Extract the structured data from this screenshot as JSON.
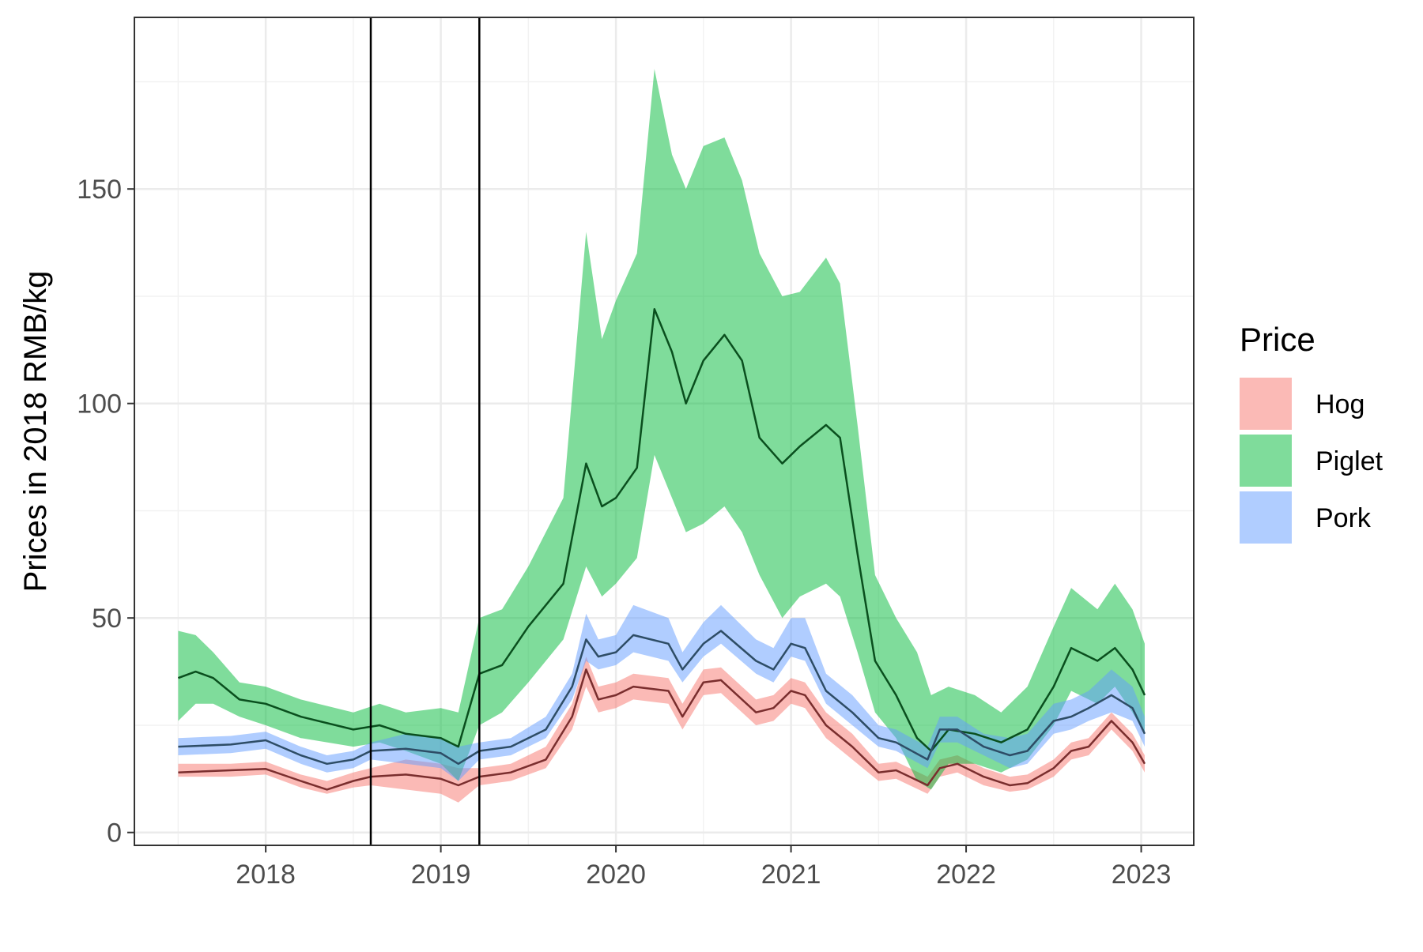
{
  "chart_data": {
    "type": "area",
    "title": "",
    "xlabel": "",
    "ylabel": "Prices in 2018 RMB/kg",
    "xlim": [
      2017.25,
      2023.3
    ],
    "ylim": [
      -3,
      190
    ],
    "x_ticks": [
      2018,
      2019,
      2020,
      2021,
      2022,
      2023
    ],
    "x_tick_labels": [
      "2018",
      "2019",
      "2020",
      "2021",
      "2022",
      "2023"
    ],
    "y_ticks": [
      0,
      50,
      100,
      150
    ],
    "y_tick_labels": [
      "0",
      "50",
      "100",
      "150"
    ],
    "grid": true,
    "legend": {
      "title": "Price",
      "position": "right"
    },
    "vertical_lines": [
      2018.6,
      2019.22
    ],
    "series": [
      {
        "name": "Hog",
        "fill_color": "#f8766d",
        "line_color": "#7a2e2e",
        "points": [
          [
            2017.5,
            14,
            13,
            16
          ],
          [
            2017.8,
            14.5,
            13,
            16
          ],
          [
            2018.0,
            14.8,
            13.5,
            16.5
          ],
          [
            2018.2,
            12,
            10.5,
            13.5
          ],
          [
            2018.35,
            10,
            9,
            12
          ],
          [
            2018.5,
            12,
            10.5,
            14
          ],
          [
            2018.6,
            13,
            11,
            15
          ],
          [
            2018.8,
            13.5,
            10,
            17
          ],
          [
            2019.0,
            12.5,
            9,
            16
          ],
          [
            2019.1,
            11,
            7,
            15
          ],
          [
            2019.22,
            13,
            11,
            15
          ],
          [
            2019.4,
            14,
            12,
            16
          ],
          [
            2019.6,
            17,
            15,
            20
          ],
          [
            2019.75,
            27,
            24,
            30
          ],
          [
            2019.83,
            38,
            34,
            41
          ],
          [
            2019.9,
            31,
            28,
            34
          ],
          [
            2020.0,
            32,
            29,
            35
          ],
          [
            2020.1,
            34,
            31,
            37
          ],
          [
            2020.3,
            33,
            30,
            36
          ],
          [
            2020.38,
            27,
            24,
            30
          ],
          [
            2020.5,
            35,
            32,
            38
          ],
          [
            2020.6,
            35.5,
            32.5,
            38.5
          ],
          [
            2020.8,
            28,
            25,
            31
          ],
          [
            2020.9,
            29,
            26,
            32
          ],
          [
            2021.0,
            33,
            30,
            36
          ],
          [
            2021.08,
            32,
            29,
            35
          ],
          [
            2021.2,
            25,
            22,
            28
          ],
          [
            2021.35,
            20,
            17,
            23
          ],
          [
            2021.5,
            14,
            12,
            16
          ],
          [
            2021.6,
            14.5,
            12.5,
            16.5
          ],
          [
            2021.78,
            11,
            9,
            13
          ],
          [
            2021.85,
            15,
            13,
            17
          ],
          [
            2021.95,
            16,
            14,
            18
          ],
          [
            2022.1,
            13,
            11,
            15
          ],
          [
            2022.25,
            11,
            9.5,
            13
          ],
          [
            2022.35,
            11.5,
            10,
            13.5
          ],
          [
            2022.5,
            15,
            13,
            17
          ],
          [
            2022.6,
            19,
            17,
            21
          ],
          [
            2022.7,
            20,
            18,
            22
          ],
          [
            2022.83,
            26,
            24,
            28
          ],
          [
            2022.95,
            21,
            19,
            23
          ],
          [
            2023.02,
            16,
            14,
            18
          ]
        ]
      },
      {
        "name": "Piglet",
        "fill_color": "#00ba38",
        "line_color": "#0a4f1e",
        "points": [
          [
            2017.5,
            36,
            26,
            47
          ],
          [
            2017.6,
            37.5,
            30,
            46
          ],
          [
            2017.7,
            36,
            30,
            42
          ],
          [
            2017.85,
            31,
            27,
            35
          ],
          [
            2018.0,
            30,
            25,
            34
          ],
          [
            2018.2,
            27,
            22,
            31
          ],
          [
            2018.5,
            24,
            20,
            28
          ],
          [
            2018.65,
            25,
            21,
            30
          ],
          [
            2018.8,
            23,
            19,
            28
          ],
          [
            2019.0,
            22,
            16,
            29
          ],
          [
            2019.1,
            20,
            12,
            28
          ],
          [
            2019.22,
            37,
            25,
            50
          ],
          [
            2019.35,
            39,
            28,
            52
          ],
          [
            2019.5,
            48,
            35,
            62
          ],
          [
            2019.7,
            58,
            45,
            78
          ],
          [
            2019.83,
            86,
            62,
            140
          ],
          [
            2019.92,
            76,
            55,
            115
          ],
          [
            2020.0,
            78,
            58,
            124
          ],
          [
            2020.12,
            85,
            64,
            135
          ],
          [
            2020.22,
            122,
            88,
            178
          ],
          [
            2020.32,
            112,
            78,
            158
          ],
          [
            2020.4,
            100,
            70,
            150
          ],
          [
            2020.5,
            110,
            72,
            160
          ],
          [
            2020.62,
            116,
            76,
            162
          ],
          [
            2020.72,
            110,
            70,
            152
          ],
          [
            2020.82,
            92,
            60,
            135
          ],
          [
            2020.95,
            86,
            50,
            125
          ],
          [
            2021.05,
            90,
            55,
            126
          ],
          [
            2021.2,
            95,
            58,
            134
          ],
          [
            2021.28,
            92,
            55,
            128
          ],
          [
            2021.38,
            65,
            42,
            95
          ],
          [
            2021.48,
            40,
            28,
            60
          ],
          [
            2021.6,
            32,
            22,
            50
          ],
          [
            2021.72,
            22,
            12,
            42
          ],
          [
            2021.8,
            19,
            10,
            32
          ],
          [
            2021.9,
            24,
            16,
            34
          ],
          [
            2022.05,
            23,
            16,
            32
          ],
          [
            2022.2,
            21,
            14,
            28
          ],
          [
            2022.35,
            24,
            17,
            34
          ],
          [
            2022.5,
            34,
            25,
            48
          ],
          [
            2022.6,
            43,
            33,
            57
          ],
          [
            2022.75,
            40,
            30,
            52
          ],
          [
            2022.85,
            43,
            34,
            58
          ],
          [
            2022.95,
            38,
            28,
            52
          ],
          [
            2023.02,
            32,
            23,
            44
          ]
        ]
      },
      {
        "name": "Pork",
        "fill_color": "#619cff",
        "line_color": "#2e4d66",
        "points": [
          [
            2017.5,
            20,
            18,
            22
          ],
          [
            2017.8,
            20.5,
            18.5,
            22.5
          ],
          [
            2018.0,
            21.5,
            19.5,
            23.5
          ],
          [
            2018.2,
            18,
            16,
            20
          ],
          [
            2018.35,
            16,
            14,
            18
          ],
          [
            2018.5,
            17,
            15,
            19
          ],
          [
            2018.6,
            19,
            17,
            21
          ],
          [
            2018.8,
            19.5,
            16,
            23
          ],
          [
            2019.0,
            18.5,
            15,
            22
          ],
          [
            2019.1,
            16,
            12,
            20
          ],
          [
            2019.22,
            19,
            17,
            21
          ],
          [
            2019.4,
            20,
            18,
            22
          ],
          [
            2019.6,
            24,
            22,
            27
          ],
          [
            2019.75,
            34,
            31,
            37
          ],
          [
            2019.83,
            45,
            40,
            51
          ],
          [
            2019.9,
            41,
            38,
            45
          ],
          [
            2020.0,
            42,
            39,
            46
          ],
          [
            2020.1,
            46,
            42,
            53
          ],
          [
            2020.3,
            44,
            40,
            50
          ],
          [
            2020.38,
            38,
            35,
            42
          ],
          [
            2020.5,
            44,
            41,
            49
          ],
          [
            2020.6,
            47,
            44,
            53
          ],
          [
            2020.8,
            40,
            37,
            45
          ],
          [
            2020.9,
            38,
            35,
            43
          ],
          [
            2021.0,
            44,
            41,
            50
          ],
          [
            2021.08,
            43,
            40,
            50
          ],
          [
            2021.2,
            33,
            30,
            37
          ],
          [
            2021.35,
            28,
            25,
            32
          ],
          [
            2021.5,
            22,
            20,
            25
          ],
          [
            2021.6,
            21,
            19,
            24
          ],
          [
            2021.78,
            17,
            15,
            20
          ],
          [
            2021.85,
            24,
            21,
            27
          ],
          [
            2021.95,
            24,
            21,
            27
          ],
          [
            2022.1,
            20,
            18,
            23
          ],
          [
            2022.25,
            18,
            15,
            22
          ],
          [
            2022.35,
            19,
            16,
            23
          ],
          [
            2022.5,
            26,
            23,
            30
          ],
          [
            2022.6,
            27,
            24,
            31
          ],
          [
            2022.7,
            29,
            26,
            33
          ],
          [
            2022.83,
            32,
            28,
            38
          ],
          [
            2022.95,
            29,
            26,
            34
          ],
          [
            2023.02,
            23,
            20,
            27
          ]
        ]
      }
    ]
  }
}
